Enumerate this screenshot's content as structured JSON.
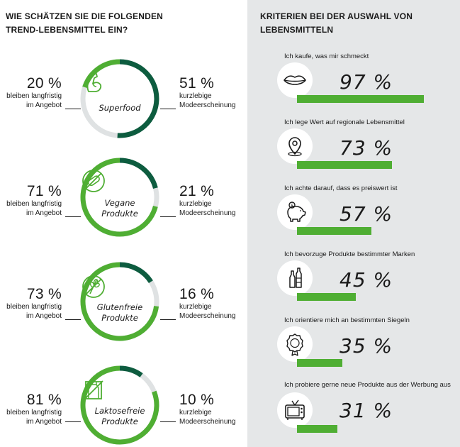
{
  "left_panel": {
    "title": "WIE SCHÄTZEN SIE DIE FOLGENDEN\nTREND-LEBENSMITTEL EIN?",
    "items": [
      {
        "name_line1": "Superfood",
        "name_line2": "",
        "icon": "flexed-arm-icon",
        "lasting_pct": "20 %",
        "lasting_line1": "bleiben langfristig",
        "lasting_line2": "im Angebot",
        "fad_pct": "51 %",
        "fad_line1": "kurzlebige",
        "fad_line2": "Modeerscheinung"
      },
      {
        "name_line1": "Vegane",
        "name_line2": "Produkte",
        "icon": "no-sausage-icon",
        "lasting_pct": "71 %",
        "lasting_line1": "bleiben langfristig",
        "lasting_line2": "im Angebot",
        "fad_pct": "21 %",
        "fad_line1": "kurzlebige",
        "fad_line2": "Modeerscheinung"
      },
      {
        "name_line1": "Glutenfreie",
        "name_line2": "Produkte",
        "icon": "no-wheat-icon",
        "lasting_pct": "73 %",
        "lasting_line1": "bleiben langfristig",
        "lasting_line2": "im Angebot",
        "fad_pct": "16 %",
        "fad_line1": "kurzlebige",
        "fad_line2": "Modeerscheinung"
      },
      {
        "name_line1": "Laktosefreie",
        "name_line2": "Produkte",
        "icon": "no-milk-carton-icon",
        "lasting_pct": "81 %",
        "lasting_line1": "bleiben langfristig",
        "lasting_line2": "im Angebot",
        "fad_pct": "10 %",
        "fad_line1": "kurzlebige",
        "fad_line2": "Modeerscheinung"
      }
    ]
  },
  "right_panel": {
    "title": "KRITERIEN BEI DER AUSWAHL VON\nLEBENSMITTELN",
    "items": [
      {
        "label": "Ich kaufe, was mir schmeckt",
        "pct": "97 %",
        "icon": "lips-icon"
      },
      {
        "label": "Ich lege Wert auf regionale Lebensmittel",
        "pct": "73 %",
        "icon": "location-pin-icon"
      },
      {
        "label": "Ich achte darauf, dass es preiswert ist",
        "pct": "57 %",
        "icon": "piggy-bank-icon"
      },
      {
        "label": "Ich bevorzuge Produkte bestimmter Marken",
        "pct": "45 %",
        "icon": "bottles-icon"
      },
      {
        "label": "Ich orientiere mich an bestimmten Siegeln",
        "pct": "35 %",
        "icon": "seal-icon"
      },
      {
        "label": "Ich probiere gerne neue Produkte aus der Werbung aus",
        "pct": "31 %",
        "icon": "tv-icon"
      }
    ]
  },
  "colors": {
    "dark_green": "#0d5c3f",
    "light_green": "#4fae33",
    "grey": "#dfe2e3",
    "panel_bg": "#e5e7e8"
  },
  "chart_data": [
    {
      "type": "donut",
      "title": "WIE SCHÄTZEN SIE DIE FOLGENDEN TREND-LEBENSMITTEL EIN?",
      "categories": [
        "Superfood",
        "Vegane Produkte",
        "Glutenfreie Produkte",
        "Laktosefreie Produkte"
      ],
      "series": [
        {
          "name": "bleiben langfristig im Angebot",
          "values": [
            20,
            71,
            73,
            81
          ]
        },
        {
          "name": "kurzlebige Modeerscheinung",
          "values": [
            51,
            21,
            16,
            10
          ]
        }
      ],
      "unit": "%"
    },
    {
      "type": "bar",
      "title": "KRITERIEN BEI DER AUSWAHL VON LEBENSMITTELN",
      "categories": [
        "Ich kaufe, was mir schmeckt",
        "Ich lege Wert auf regionale Lebensmittel",
        "Ich achte darauf, dass es preiswert ist",
        "Ich bevorzuge Produkte bestimmter Marken",
        "Ich orientiere mich an bestimmten Siegeln",
        "Ich probiere gerne neue Produkte aus der Werbung aus"
      ],
      "values": [
        97,
        73,
        57,
        45,
        35,
        31
      ],
      "unit": "%",
      "ylim": [
        0,
        100
      ]
    }
  ]
}
